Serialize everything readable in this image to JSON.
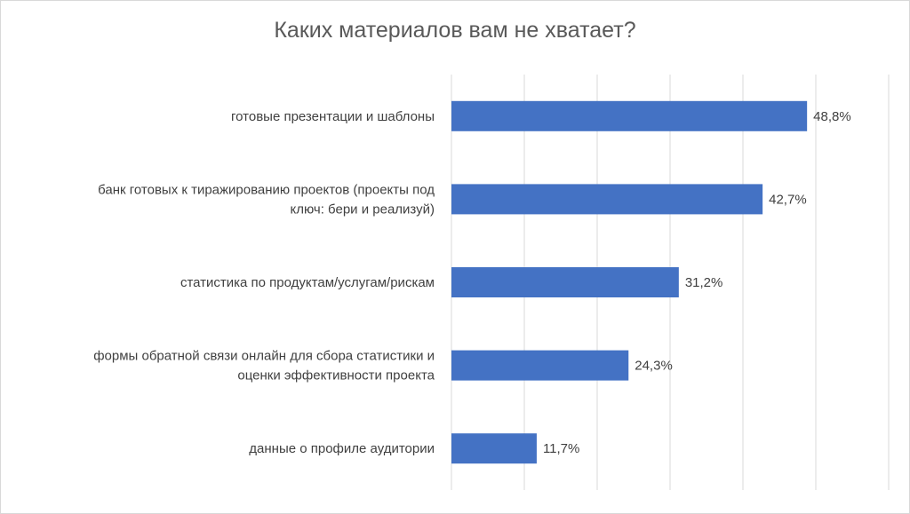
{
  "chart_data": {
    "type": "bar",
    "orientation": "horizontal",
    "title": "Каких материалов вам не хватает?",
    "categories": [
      [
        "готовые презентации и шаблоны"
      ],
      [
        "банк готовых к тиражированию проектов (проекты под",
        "ключ: бери и реализуй)"
      ],
      [
        "статистика по продуктам/услугам/рискам"
      ],
      [
        "формы обратной связи онлайн для сбора статистики и",
        "оценки эффективности проекта"
      ],
      [
        "данные о профиле аудитории"
      ]
    ],
    "values": [
      48.8,
      42.7,
      31.2,
      24.3,
      11.7
    ],
    "value_labels": [
      "48,8%",
      "42,7%",
      "31,2%",
      "24,3%",
      "11,7%"
    ],
    "xlim": [
      0,
      60
    ],
    "grid": true,
    "legend": "none",
    "colors": {
      "bar": "#4472C4",
      "grid": "#d9d9d9",
      "text": "#404040",
      "title": "#595959"
    }
  }
}
